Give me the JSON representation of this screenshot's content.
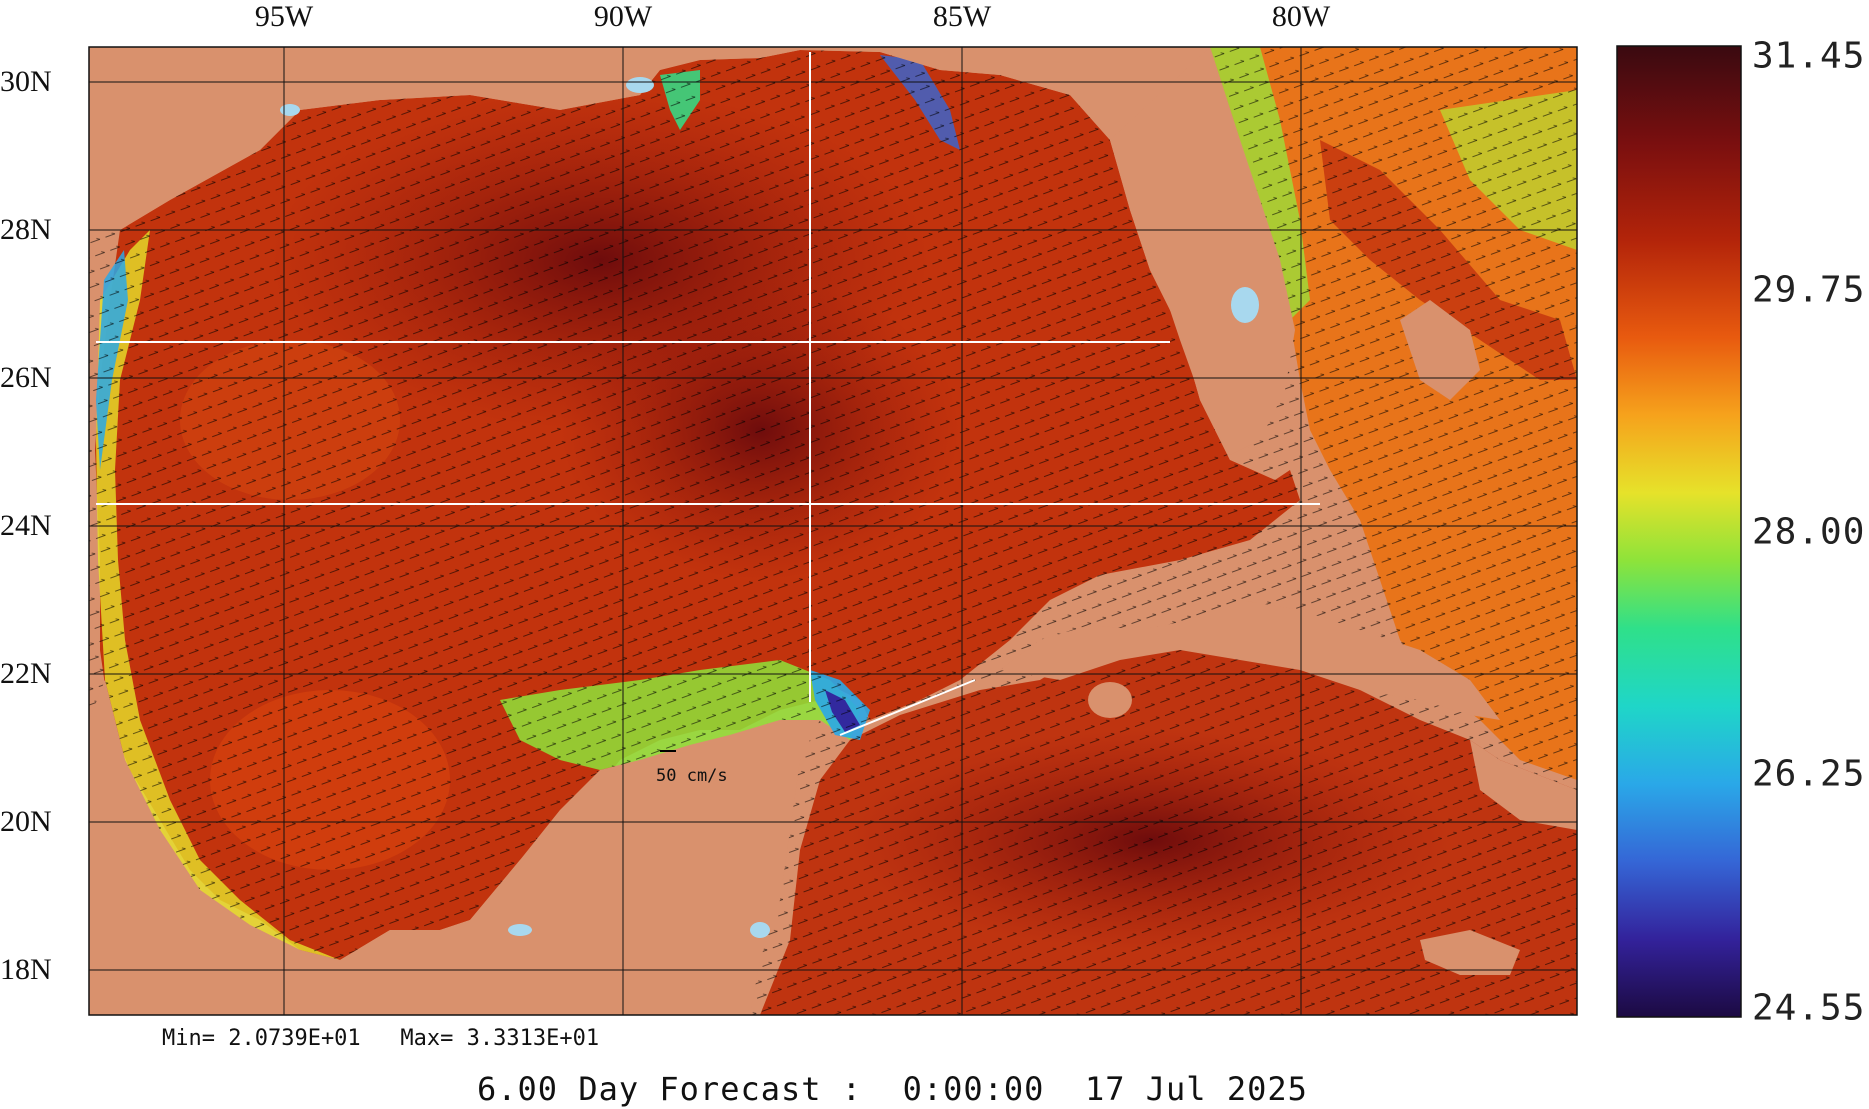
{
  "map": {
    "longitude_labels": [
      "95W",
      "90W",
      "85W",
      "80W"
    ],
    "latitude_labels": [
      "30N",
      "28N",
      "26N",
      "24N",
      "22N",
      "20N",
      "18N"
    ],
    "region": "Gulf of Mexico / Caribbean",
    "extent": {
      "lon_min": -97.8,
      "lon_max": -75.9,
      "lat_min": 17.6,
      "lat_max": 30.5
    },
    "colors": {
      "land": "#d9916d",
      "lake": "#a8d8ee",
      "grid": "#111111",
      "section_lines": "#ffffff",
      "vectors": "#000000"
    }
  },
  "colorbar": {
    "labels": [
      "31.45",
      "29.75",
      "28.00",
      "26.25",
      "24.55"
    ],
    "max": 31.45,
    "min": 24.55,
    "palette": [
      "#3a0a10",
      "#7a0f0f",
      "#b3240a",
      "#e85a0f",
      "#f6a21c",
      "#e6e22a",
      "#8ee33a",
      "#2fe08a",
      "#1fd6c8",
      "#2aa8e8",
      "#3566d6",
      "#33229b",
      "#1c0a42"
    ]
  },
  "stats": {
    "text": "Min= 2.0739E+01   Max= 3.3313E+01"
  },
  "vector_scale": {
    "label": "50 cm/s"
  },
  "footer": {
    "text": "6.00 Day Forecast :  0:00:00  17 Jul 2025"
  }
}
